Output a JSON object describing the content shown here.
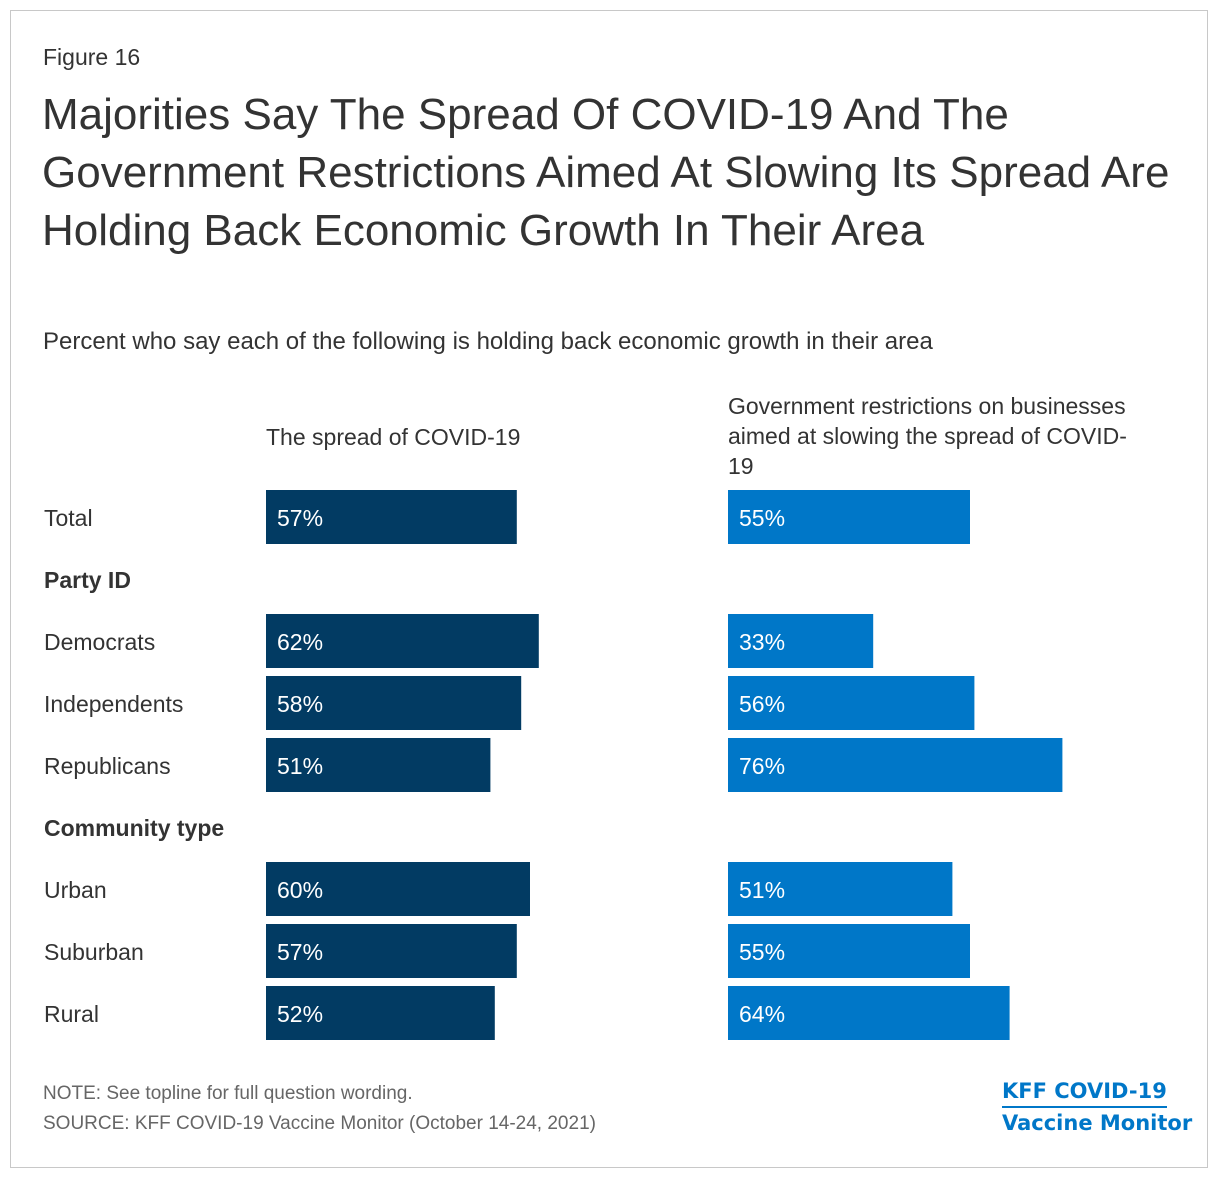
{
  "figure_label": "Figure 16",
  "title": "Majorities Say The Spread Of COVID-19 And The Government Restrictions Aimed At Slowing Its Spread Are Holding Back Economic Growth In Their Area",
  "subtitle": "Percent who say each of the following is holding back economic growth in their area",
  "note": "NOTE: See topline for full question wording.",
  "source": "SOURCE: KFF COVID-19 Vaccine Monitor (October 14-24, 2021)",
  "logo": {
    "line1": "KFF COVID-19",
    "line2": "Vaccine Monitor"
  },
  "colors": {
    "series1": "#023b63",
    "series2": "#0077c8",
    "text": "#333333"
  },
  "chart_data": {
    "type": "bar",
    "orientation": "horizontal",
    "value_suffix": "%",
    "xlim": [
      0,
      100
    ],
    "categories": [
      "Total",
      "Party ID",
      "Democrats",
      "Independents",
      "Republicans",
      "Community type",
      "Urban",
      "Suburban",
      "Rural"
    ],
    "group_headers": [
      "Party ID",
      "Community type"
    ],
    "series": [
      {
        "name": "The spread of COVID-19",
        "values": [
          57,
          null,
          62,
          58,
          51,
          null,
          60,
          57,
          52
        ]
      },
      {
        "name": "Government restrictions on businesses aimed at slowing the spread of COVID-19",
        "values": [
          55,
          null,
          33,
          56,
          76,
          null,
          51,
          55,
          64
        ]
      }
    ]
  }
}
